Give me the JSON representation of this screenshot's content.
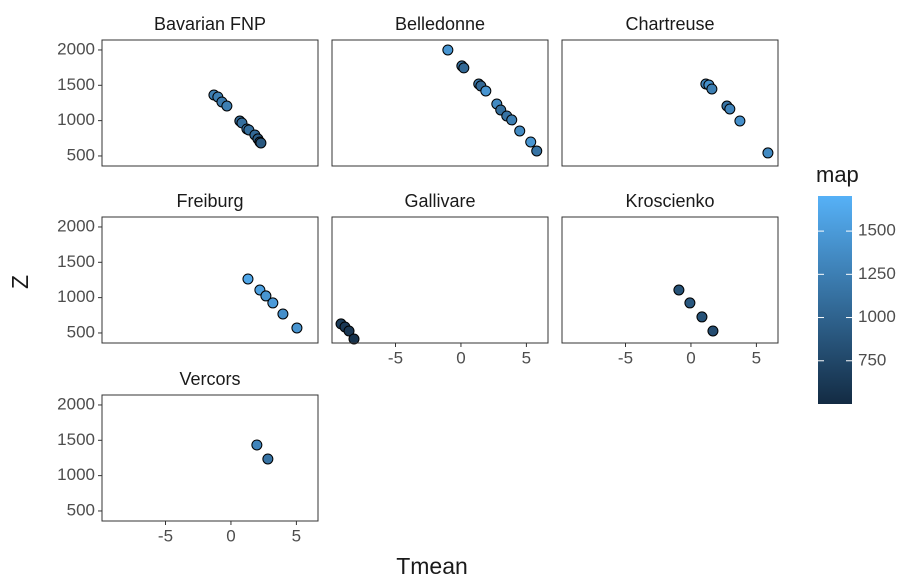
{
  "chart_data": [
    {
      "type": "scatter",
      "title": "Bavarian FNP",
      "x": [
        -1.3,
        -1.0,
        -0.69,
        -0.31,
        0.68,
        0.84,
        1.22,
        1.37,
        1.83,
        2.06,
        2.21,
        2.29
      ],
      "y": [
        1363,
        1335,
        1264,
        1207,
        995,
        967,
        882,
        868,
        797,
        741,
        698,
        684
      ],
      "map": [
        1250,
        1250,
        1200,
        1250,
        1050,
        1100,
        1150,
        1100,
        1050,
        950,
        950,
        900
      ]
    },
    {
      "type": "scatter",
      "title": "Belledonne",
      "x": [
        -1.0,
        0.07,
        0.22,
        1.36,
        1.52,
        1.9,
        2.74,
        3.04,
        3.5,
        3.88,
        4.49,
        5.33,
        5.79
      ],
      "y": [
        2000,
        1774,
        1746,
        1519,
        1491,
        1420,
        1236,
        1151,
        1066,
        1010,
        854,
        698,
        571
      ],
      "map": [
        1450,
        1150,
        1050,
        1200,
        1050,
        1450,
        1350,
        1100,
        1150,
        1250,
        1350,
        1450,
        1150
      ]
    },
    {
      "type": "scatter",
      "title": "Chartreuse",
      "x": [
        1.14,
        1.37,
        1.6,
        2.75,
        2.97,
        3.74,
        5.88
      ],
      "y": [
        1519,
        1505,
        1448,
        1207,
        1165,
        995,
        543
      ],
      "map": [
        1300,
        1400,
        1250,
        1150,
        1300,
        1400,
        1350
      ]
    },
    {
      "type": "scatter",
      "title": "Freiburg",
      "x": [
        1.3,
        2.21,
        2.67,
        3.2,
        3.97,
        5.04
      ],
      "y": [
        1264,
        1108,
        1024,
        925,
        769,
        571
      ],
      "map": [
        1600,
        1550,
        1450,
        1500,
        1400,
        1450
      ]
    },
    {
      "type": "scatter",
      "title": "Gallivare",
      "x": [
        -9.16,
        -8.86,
        -8.55,
        -8.17
      ],
      "y": [
        628,
        585,
        528,
        415
      ],
      "map": [
        650,
        620,
        600,
        560
      ]
    },
    {
      "type": "scatter",
      "title": "Kroscienko",
      "x": [
        -0.92,
        -0.08,
        0.84,
        1.68
      ],
      "y": [
        1108,
        925,
        727,
        528
      ],
      "map": [
        850,
        900,
        850,
        800
      ]
    },
    {
      "type": "scatter",
      "title": "Vercors",
      "x": [
        1.98,
        2.82
      ],
      "y": [
        1434,
        1236
      ],
      "map": [
        1300,
        1150
      ]
    }
  ],
  "axes": {
    "xlabel": "Tmean",
    "ylabel": "Z",
    "xlim": [
      -9.85,
      6.65
    ],
    "xticks": [
      -5,
      0,
      5
    ],
    "ylim": [
      358,
      2141
    ],
    "yticks": [
      500,
      1000,
      1500,
      2000
    ]
  },
  "colorbar": {
    "title": "map",
    "lim": [
      500,
      1703
    ],
    "ticks": [
      750,
      1000,
      1250,
      1500
    ],
    "low": "#132B43",
    "high": "#56B1F7"
  }
}
